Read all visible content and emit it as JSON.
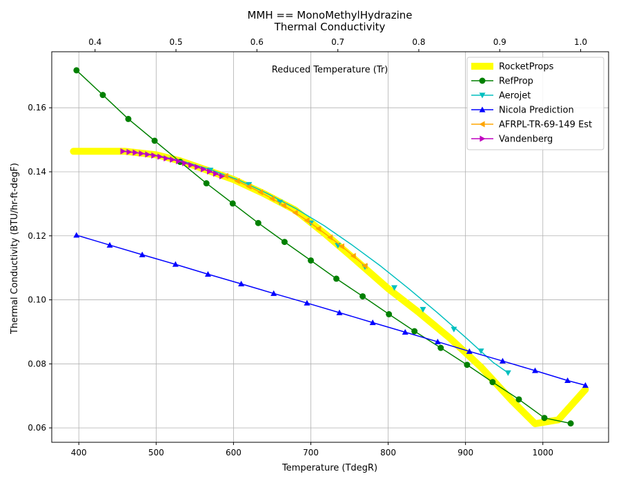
{
  "chart_data": {
    "type": "line",
    "title": "MMH == MonoMethylHydrazine",
    "subtitle": "Thermal Conductivity",
    "xlabel": "Temperature (TdegR)",
    "ylabel": "Thermal Conductivity (BTU/hr-ft-degF)",
    "top_xlabel": "Reduced Temperature (Tr)",
    "xlim": [
      365,
      1085
    ],
    "ylim": [
      0.0555,
      0.1775
    ],
    "top_xlim": [
      0.3465,
      1.0345
    ],
    "x_ticks": [
      400,
      500,
      600,
      700,
      800,
      900,
      1000
    ],
    "y_ticks": [
      0.06,
      0.08,
      0.1,
      0.12,
      0.14,
      0.16
    ],
    "x_tick_labels": [
      "400",
      "500",
      "600",
      "700",
      "800",
      "900",
      "1000"
    ],
    "y_tick_labels": [
      "0.06",
      "0.08",
      "0.10",
      "0.12",
      "0.14",
      "0.16"
    ],
    "top_x_ticks": [
      0.4,
      0.5,
      0.6,
      0.7,
      0.8,
      0.9,
      1.0
    ],
    "top_x_tick_labels": [
      "0.4",
      "0.5",
      "0.6",
      "0.7",
      "0.8",
      "0.9",
      "1.0"
    ],
    "grid": true,
    "legend_position": "top-right",
    "series": [
      {
        "name": "RocketProps",
        "color": "#ffff00",
        "marker": "none",
        "line_width": 10,
        "x": [
          393,
          420,
          460,
          500,
          530,
          560,
          600,
          640,
          680,
          720,
          760,
          800,
          840,
          880,
          920,
          960,
          990,
          1000,
          1020,
          1055
        ],
        "y": [
          0.1464,
          0.1464,
          0.1464,
          0.1453,
          0.1435,
          0.141,
          0.1376,
          0.1331,
          0.128,
          0.1203,
          0.112,
          0.1035,
          0.096,
          0.088,
          0.079,
          0.0685,
          0.0613,
          0.0617,
          0.0625,
          0.072
        ]
      },
      {
        "name": "RefProp",
        "color": "#008000",
        "marker": "circle",
        "line_width": 1.5,
        "x": [
          397,
          431,
          464,
          498,
          531,
          565,
          599,
          632,
          666,
          700,
          733,
          767,
          801,
          834,
          868,
          902,
          935,
          969,
          1002,
          1036
        ],
        "y": [
          0.1717,
          0.164,
          0.1565,
          0.1497,
          0.1431,
          0.1364,
          0.1301,
          0.124,
          0.1181,
          0.1123,
          0.1066,
          0.1011,
          0.0955,
          0.0902,
          0.085,
          0.0797,
          0.0743,
          0.0689,
          0.0631,
          0.0614
        ]
      },
      {
        "name": "Aerojet",
        "color": "#00bfbf",
        "marker": "triangle-down",
        "line_width": 1.5,
        "x": [
          460,
          497,
          533,
          570,
          607,
          643,
          680,
          717,
          753,
          790,
          826,
          863,
          900,
          936,
          955
        ],
        "y": [
          0.1464,
          0.1453,
          0.1434,
          0.1407,
          0.1374,
          0.1333,
          0.1286,
          0.1232,
          0.1172,
          0.1106,
          0.1036,
          0.0961,
          0.0883,
          0.0804,
          0.0772
        ],
        "x_markers": [
          570,
          620,
          660,
          700,
          735,
          770,
          808,
          845,
          885,
          920,
          955
        ],
        "y_markers": [
          0.1405,
          0.136,
          0.1305,
          0.124,
          0.117,
          0.1103,
          0.1038,
          0.097,
          0.0908,
          0.084,
          0.0772
        ]
      },
      {
        "name": "Nicola Prediction",
        "color": "#0000ff",
        "marker": "triangle-up",
        "line_width": 1.5,
        "x": [
          397,
          440,
          482,
          525,
          567,
          610,
          652,
          695,
          737,
          780,
          822,
          864,
          905,
          948,
          990,
          1032,
          1055
        ],
        "y": [
          0.1202,
          0.1171,
          0.1141,
          0.1111,
          0.108,
          0.105,
          0.102,
          0.099,
          0.096,
          0.0929,
          0.0899,
          0.0869,
          0.0839,
          0.0809,
          0.0779,
          0.0748,
          0.0733
        ]
      },
      {
        "name": "AFRPL-TR-69-149 Est",
        "color": "#ffa500",
        "marker": "triangle-left",
        "line_width": 1.5,
        "x": [
          590,
          605,
          620,
          635,
          650,
          665,
          680,
          695,
          710,
          725,
          740,
          755,
          770
        ],
        "y": [
          0.1387,
          0.1371,
          0.1354,
          0.1336,
          0.1316,
          0.1295,
          0.1272,
          0.1248,
          0.1222,
          0.1195,
          0.1167,
          0.1137,
          0.1106
        ]
      },
      {
        "name": "Vandenberg",
        "color": "#bf00bf",
        "marker": "triangle-right",
        "line_width": 1.5,
        "x": [
          457,
          465,
          473,
          481,
          489,
          497,
          505,
          513,
          521,
          529,
          537,
          545,
          553,
          561,
          569,
          577,
          585
        ],
        "y": [
          0.1464,
          0.1462,
          0.146,
          0.1457,
          0.1454,
          0.1451,
          0.1447,
          0.1442,
          0.1438,
          0.1433,
          0.1427,
          0.1421,
          0.1415,
          0.1408,
          0.1401,
          0.1394,
          0.1386
        ]
      }
    ]
  }
}
